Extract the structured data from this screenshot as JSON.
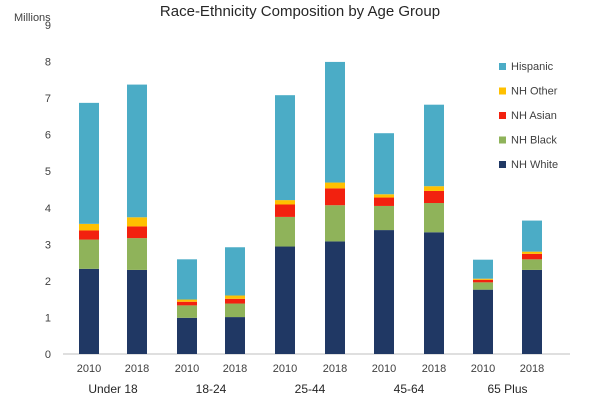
{
  "chart_data": {
    "type": "bar",
    "stacked": true,
    "title": "Race-Ethnicity Composition by Age Group",
    "ylabel": "Millions",
    "ylim": [
      0,
      9
    ],
    "yticks": [
      0,
      1,
      2,
      3,
      4,
      5,
      6,
      7,
      8,
      9
    ],
    "categories": [
      "2010",
      "2018",
      "2010",
      "2018",
      "2010",
      "2018",
      "2010",
      "2018",
      "2010",
      "2018"
    ],
    "groups": [
      {
        "label": "Under 18",
        "bars": [
          0,
          1
        ]
      },
      {
        "label": "18-24",
        "bars": [
          2,
          3
        ]
      },
      {
        "label": "25-44",
        "bars": [
          4,
          5
        ]
      },
      {
        "label": "45-64",
        "bars": [
          6,
          7
        ]
      },
      {
        "label": "65 Plus",
        "bars": [
          8,
          9
        ]
      }
    ],
    "series": [
      {
        "name": "NH White",
        "color": "#203864",
        "values": [
          2.33,
          2.3,
          0.99,
          1.01,
          2.94,
          3.08,
          3.39,
          3.33,
          1.76,
          2.3
        ]
      },
      {
        "name": "NH Black",
        "color": "#8fb35a",
        "values": [
          0.8,
          0.87,
          0.34,
          0.37,
          0.81,
          0.99,
          0.66,
          0.8,
          0.2,
          0.29
        ]
      },
      {
        "name": "NH Asian",
        "color": "#f2210f",
        "values": [
          0.25,
          0.32,
          0.1,
          0.13,
          0.34,
          0.46,
          0.23,
          0.33,
          0.07,
          0.15
        ]
      },
      {
        "name": "NH Other",
        "color": "#ffc000",
        "values": [
          0.18,
          0.25,
          0.06,
          0.09,
          0.12,
          0.16,
          0.09,
          0.13,
          0.03,
          0.06
        ]
      },
      {
        "name": "Hispanic",
        "color": "#4bacc6",
        "values": [
          3.31,
          3.63,
          1.1,
          1.32,
          2.87,
          3.3,
          1.67,
          2.23,
          0.52,
          0.85
        ]
      }
    ],
    "legend": {
      "position": "right",
      "order": [
        "Hispanic",
        "NH Other",
        "NH Asian",
        "NH Black",
        "NH White"
      ]
    },
    "grid": false
  }
}
